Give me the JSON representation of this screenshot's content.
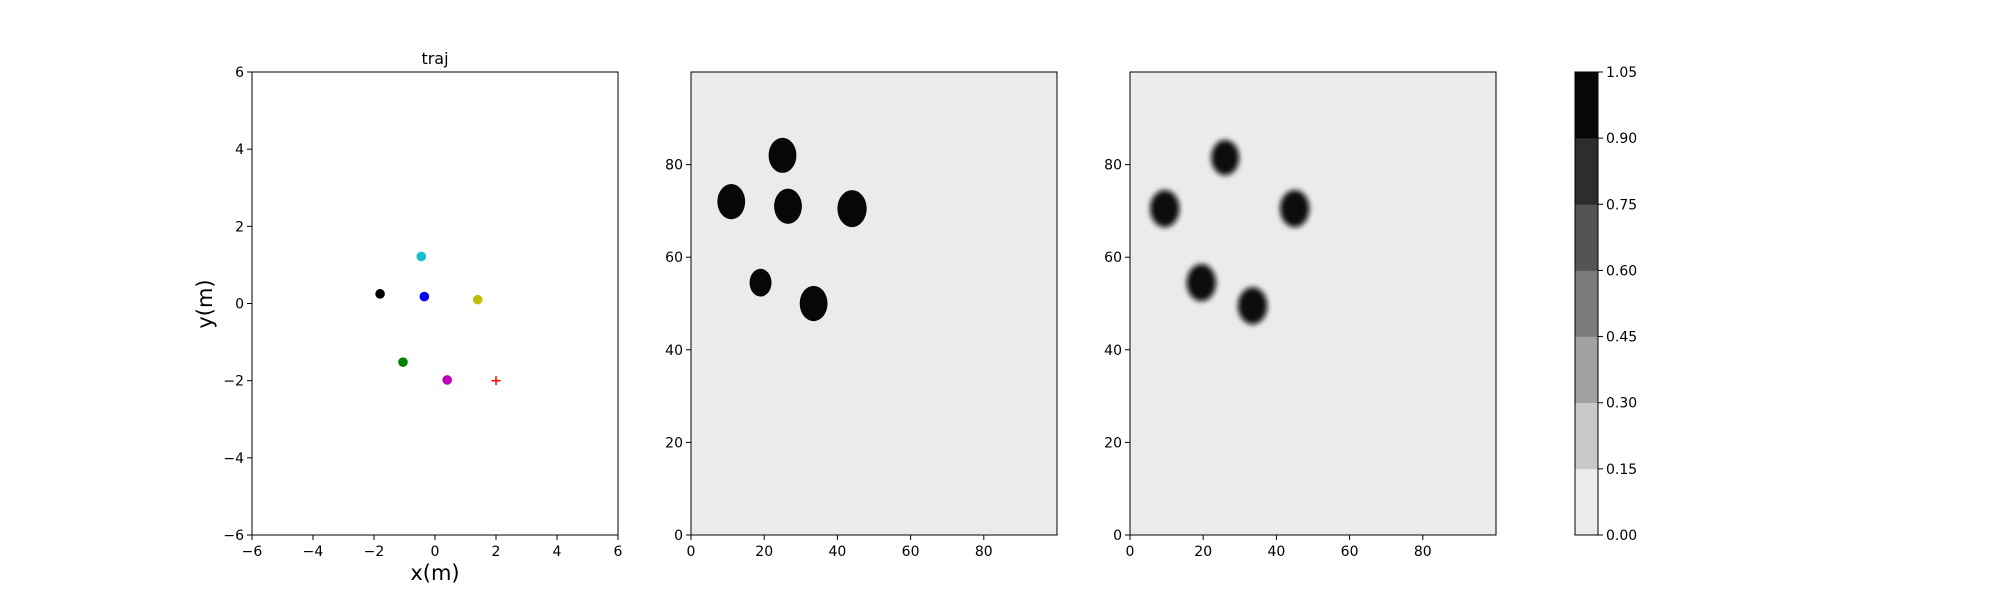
{
  "chart_data": [
    {
      "type": "scatter",
      "title": "traj",
      "xlabel": "x(m)",
      "ylabel": "y(m)",
      "xlim": [
        -6,
        6
      ],
      "ylim": [
        -6,
        6
      ],
      "xticks": [
        "−6",
        "−4",
        "−2",
        "0",
        "2",
        "4",
        "6"
      ],
      "yticks": [
        "−6",
        "−4",
        "−2",
        "0",
        "2",
        "4",
        "6"
      ],
      "grid": false,
      "points": [
        {
          "x": -1.8,
          "y": 0.25,
          "color": "#000000",
          "marker": "dot"
        },
        {
          "x": -0.45,
          "y": 1.22,
          "color": "#17becf",
          "marker": "dot"
        },
        {
          "x": -0.35,
          "y": 0.18,
          "color": "#0000ff",
          "marker": "dot"
        },
        {
          "x": 1.4,
          "y": 0.1,
          "color": "#bfbf00",
          "marker": "dot"
        },
        {
          "x": -1.05,
          "y": -1.52,
          "color": "#008000",
          "marker": "dot"
        },
        {
          "x": 0.4,
          "y": -1.98,
          "color": "#bf00bf",
          "marker": "dot"
        },
        {
          "x": 2.0,
          "y": -2.0,
          "color": "#ff0000",
          "marker": "plus"
        }
      ]
    },
    {
      "type": "heatmap",
      "xlim": [
        0,
        100
      ],
      "ylim": [
        0,
        100
      ],
      "xticks": [
        "0",
        "20",
        "40",
        "60",
        "80"
      ],
      "yticks": [
        "0",
        "20",
        "40",
        "60",
        "80"
      ],
      "background_value": 0.05,
      "blob_style": "hard",
      "blobs": [
        {
          "x": 25,
          "y": 82,
          "r": 3.8,
          "value": 1.0
        },
        {
          "x": 11,
          "y": 72,
          "r": 3.8,
          "value": 1.0
        },
        {
          "x": 26.5,
          "y": 71,
          "r": 3.8,
          "value": 1.0
        },
        {
          "x": 44,
          "y": 70.5,
          "r": 4.0,
          "value": 1.0
        },
        {
          "x": 19,
          "y": 54.5,
          "r": 3.0,
          "value": 1.0
        },
        {
          "x": 33.5,
          "y": 50,
          "r": 3.8,
          "value": 1.0
        }
      ]
    },
    {
      "type": "heatmap",
      "xlim": [
        0,
        100
      ],
      "ylim": [
        0,
        100
      ],
      "xticks": [
        "0",
        "20",
        "40",
        "60",
        "80"
      ],
      "yticks": [
        "0",
        "20",
        "40",
        "60",
        "80"
      ],
      "background_value": 0.05,
      "blob_style": "soft",
      "blobs": [
        {
          "x": 26,
          "y": 81.5,
          "r": 3.8,
          "value": 1.0
        },
        {
          "x": 9.5,
          "y": 70.5,
          "r": 4.0,
          "value": 1.0
        },
        {
          "x": 45,
          "y": 70.5,
          "r": 4.0,
          "value": 1.0
        },
        {
          "x": 19.5,
          "y": 54.5,
          "r": 4.0,
          "value": 1.0
        },
        {
          "x": 33.5,
          "y": 49.5,
          "r": 4.0,
          "value": 1.0
        }
      ]
    },
    {
      "type": "colorbar",
      "levels": [
        "0.00",
        "0.15",
        "0.30",
        "0.45",
        "0.60",
        "0.75",
        "0.90",
        "1.05"
      ],
      "colors": [
        "#ebebeb",
        "#c9c9c9",
        "#a1a1a1",
        "#7a7a7a",
        "#545454",
        "#2d2d2d",
        "#070707"
      ]
    }
  ]
}
